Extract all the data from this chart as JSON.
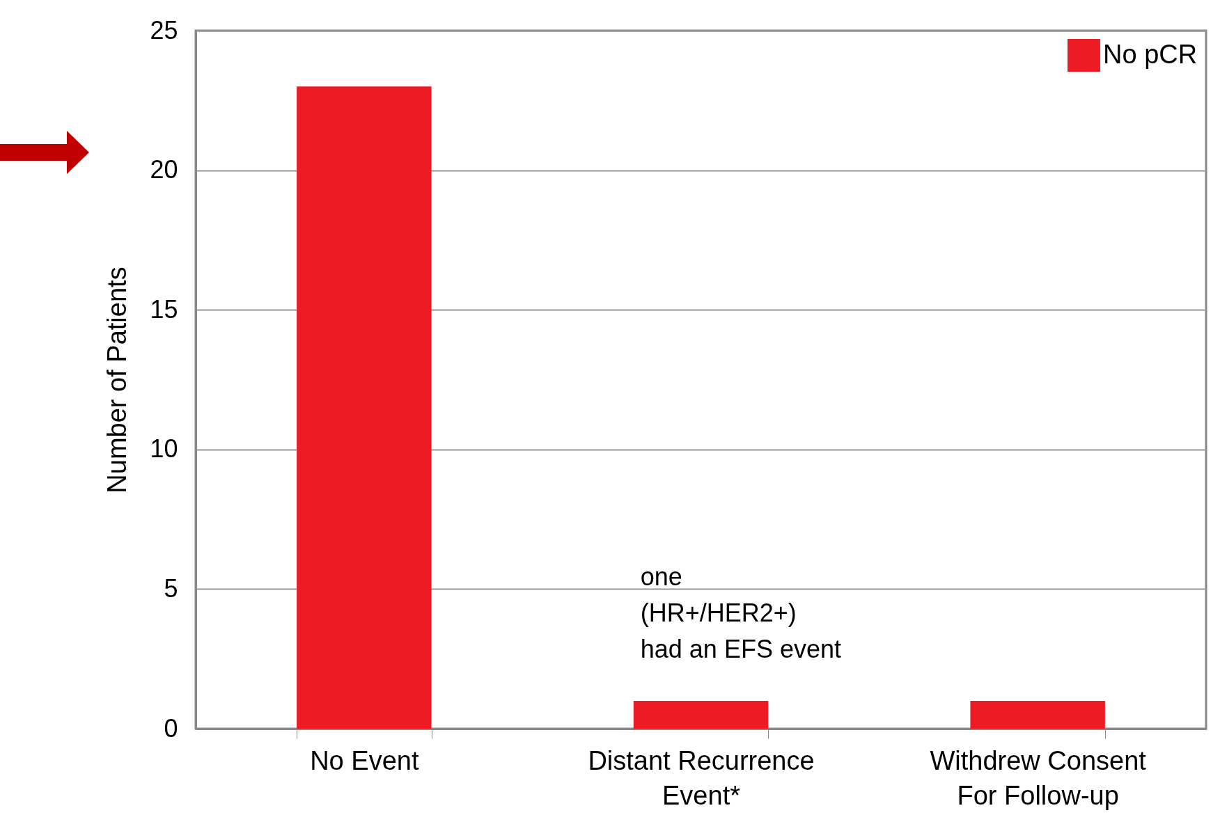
{
  "chart_data": {
    "type": "bar",
    "ylabel": "Number of Patients",
    "categories": [
      "No Event",
      "Distant Recurrence Event*",
      "Withdrew Consent For Follow-up"
    ],
    "series": [
      {
        "name": "No pCR",
        "color": "#ed1c24",
        "values": [
          23,
          1,
          1
        ]
      }
    ],
    "ylim": [
      0,
      25
    ],
    "yticks": [
      0,
      5,
      10,
      15,
      20,
      25
    ],
    "grid": "y",
    "legend": "top right",
    "annotations": [
      {
        "text": "one\n(HR+/HER2+)\nhad an EFS event",
        "x": "Distant Recurrence Event*",
        "y": 1
      }
    ]
  }
}
